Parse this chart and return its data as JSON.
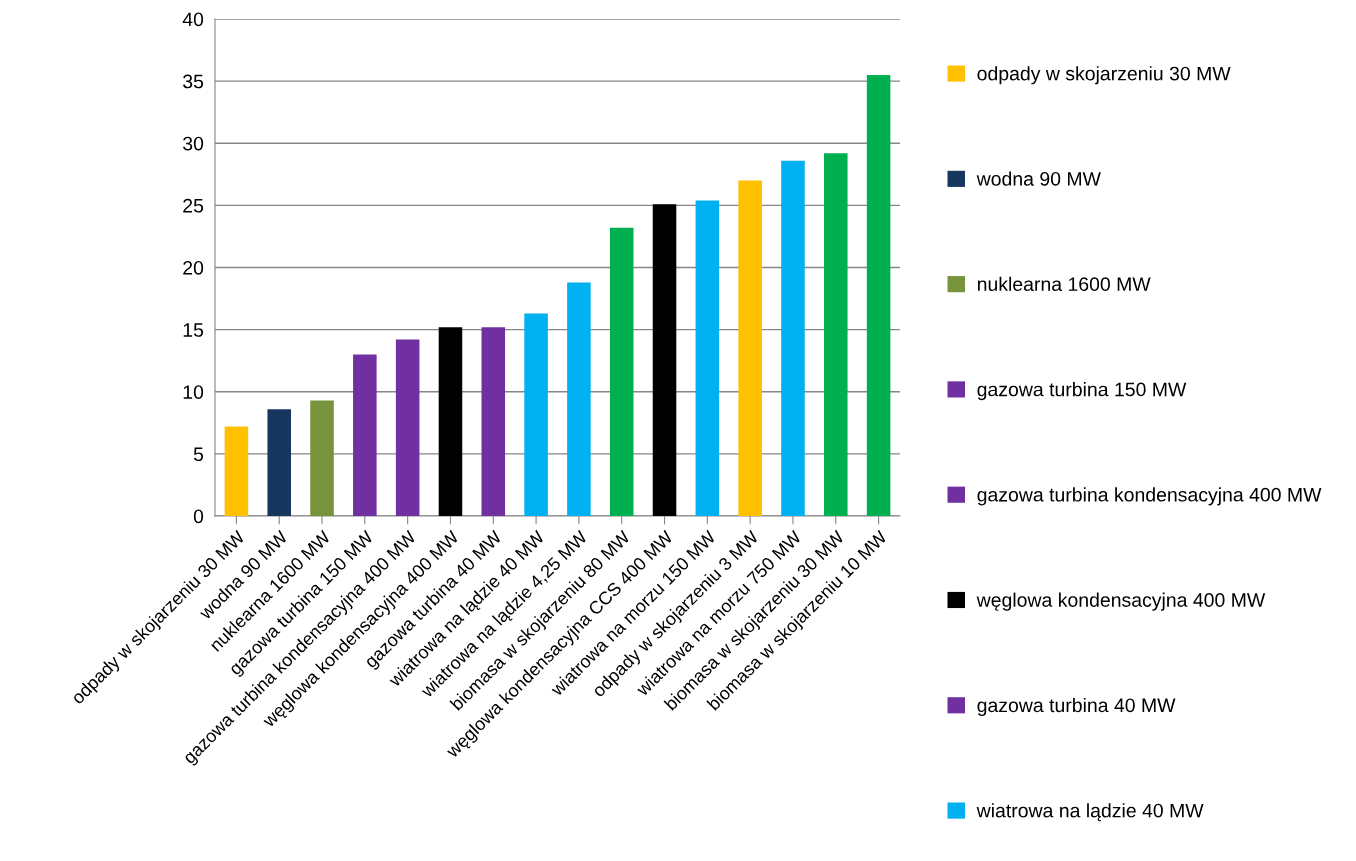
{
  "chart_data": {
    "type": "bar",
    "categories": [
      "odpady w skojarzeniu 30 MW",
      "wodna 90 MW",
      "nuklearna 1600 MW",
      "gazowa turbina 150 MW",
      "gazowa turbina kondensacyjna 400 MW",
      "węglowa kondensacyjna 400 MW",
      "gazowa turbina 40 MW",
      "wiatrowa na lądzie 40 MW",
      "wiatrowa na lądzie 4,25 MW",
      "biomasa w skojarzeniu 80 MW",
      "węglowa kondensacyjna CCS 400 MW",
      "wiatrowa na morzu 150 MW",
      "odpady w skojarzeniu 3 MW",
      "wiatrowa na morzu 750 MW",
      "biomasa w skojarzeniu 30 MW",
      "biomasa w skojarzeniu 10 MW"
    ],
    "series": [
      {
        "name": "odpady w skojarzeniu 30 MW",
        "color": "#ffc000",
        "values": [
          7.2,
          null,
          null,
          null,
          null,
          null,
          null,
          null,
          null,
          null,
          null,
          null,
          null,
          null,
          null,
          null
        ]
      },
      {
        "name": "wodna 90 MW",
        "color": "#17375e",
        "values": [
          null,
          8.6,
          null,
          null,
          null,
          null,
          null,
          null,
          null,
          null,
          null,
          null,
          null,
          null,
          null,
          null
        ]
      },
      {
        "name": "nuklearna 1600 MW",
        "color": "#77933c",
        "values": [
          null,
          null,
          9.3,
          null,
          null,
          null,
          null,
          null,
          null,
          null,
          null,
          null,
          null,
          null,
          null,
          null
        ]
      },
      {
        "name": "gazowa turbina 150 MW",
        "color": "#7030a0",
        "values": [
          null,
          null,
          null,
          13.0,
          null,
          null,
          null,
          null,
          null,
          null,
          null,
          null,
          null,
          null,
          null,
          null
        ]
      },
      {
        "name": "gazowa turbina kondensacyjna 400 MW",
        "color": "#7030a0",
        "values": [
          null,
          null,
          null,
          null,
          14.2,
          null,
          null,
          null,
          null,
          null,
          null,
          null,
          null,
          null,
          null,
          null
        ]
      },
      {
        "name": "węglowa kondensacyjna 400 MW",
        "color": "#000000",
        "values": [
          null,
          null,
          null,
          null,
          null,
          15.2,
          null,
          null,
          null,
          null,
          null,
          null,
          null,
          null,
          null,
          null
        ]
      },
      {
        "name": "gazowa turbina 40 MW",
        "color": "#7030a0",
        "values": [
          null,
          null,
          null,
          null,
          null,
          null,
          15.2,
          null,
          null,
          null,
          null,
          null,
          null,
          null,
          null,
          null
        ]
      },
      {
        "name": "wiatrowa na lądzie 40 MW",
        "color": "#00b0f0",
        "values": [
          null,
          null,
          null,
          null,
          null,
          null,
          null,
          16.3,
          null,
          null,
          null,
          null,
          null,
          null,
          null,
          null
        ]
      },
      {
        "color": "#00b0f0",
        "values": [
          null,
          null,
          null,
          null,
          null,
          null,
          null,
          null,
          18.8,
          null,
          null,
          null,
          null,
          null,
          null,
          null
        ]
      },
      {
        "color": "#00b050",
        "values": [
          null,
          null,
          null,
          null,
          null,
          null,
          null,
          null,
          null,
          23.2,
          null,
          null,
          null,
          null,
          null,
          null
        ]
      },
      {
        "color": "#000000",
        "values": [
          null,
          null,
          null,
          null,
          null,
          null,
          null,
          null,
          null,
          null,
          25.1,
          null,
          null,
          null,
          null,
          null
        ]
      },
      {
        "color": "#00b0f0",
        "values": [
          null,
          null,
          null,
          null,
          null,
          null,
          null,
          null,
          null,
          null,
          null,
          25.4,
          null,
          null,
          null,
          null
        ]
      },
      {
        "color": "#ffc000",
        "values": [
          null,
          null,
          null,
          null,
          null,
          null,
          null,
          null,
          null,
          null,
          null,
          null,
          27.0,
          null,
          null,
          null
        ]
      },
      {
        "color": "#00b0f0",
        "values": [
          null,
          null,
          null,
          null,
          null,
          null,
          null,
          null,
          null,
          null,
          null,
          null,
          null,
          28.6,
          null,
          null
        ]
      },
      {
        "color": "#00b050",
        "values": [
          null,
          null,
          null,
          null,
          null,
          null,
          null,
          null,
          null,
          null,
          null,
          null,
          null,
          null,
          29.2,
          null
        ]
      },
      {
        "color": "#00b050",
        "values": [
          null,
          null,
          null,
          null,
          null,
          null,
          null,
          null,
          null,
          null,
          null,
          null,
          null,
          null,
          null,
          35.5
        ]
      }
    ],
    "ylim": [
      0,
      40
    ],
    "yticks": [
      0,
      5,
      10,
      15,
      20,
      25,
      30,
      35,
      40
    ],
    "grid": "y",
    "legend": "right"
  }
}
